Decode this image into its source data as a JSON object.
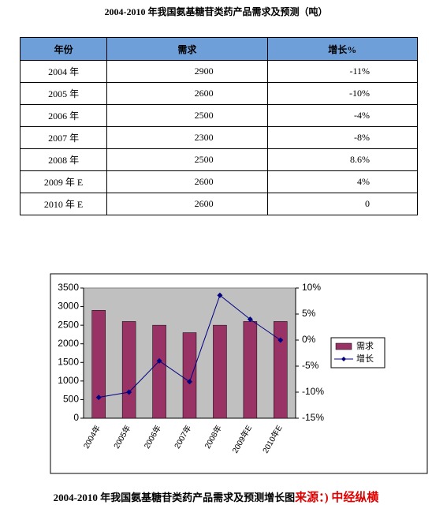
{
  "title": "2004-2010 年我国氨基糖苷类药产品需求及预测（吨）",
  "table": {
    "header": [
      "年份",
      "需求",
      "增长%"
    ],
    "rows": [
      [
        "2004 年",
        "2900",
        "-11%"
      ],
      [
        "2005 年",
        "2600",
        "-10%"
      ],
      [
        "2006 年",
        "2500",
        "-4%"
      ],
      [
        "2007 年",
        "2300",
        "-8%"
      ],
      [
        "2008 年",
        "2500",
        "8.6%"
      ],
      [
        "2009 年 E",
        "2600",
        "4%"
      ],
      [
        "2010 年 E",
        "2600",
        "0"
      ]
    ]
  },
  "chart_data": {
    "type": "bar",
    "categories": [
      "2004年",
      "2005年",
      "2006年",
      "2007年",
      "2008年",
      "2009年E",
      "2010年E"
    ],
    "series": [
      {
        "name": "需求",
        "color": "#993366",
        "type": "bar",
        "values": [
          2900,
          2600,
          2500,
          2300,
          2500,
          2600,
          2600
        ]
      },
      {
        "name": "增长",
        "color": "#000080",
        "type": "line",
        "axis": "y2",
        "values": [
          -11,
          -10,
          -4,
          -8,
          8.6,
          4,
          0
        ]
      }
    ],
    "ylim": [
      0,
      3500
    ],
    "yticks": [
      0,
      500,
      1000,
      1500,
      2000,
      2500,
      3000,
      3500
    ],
    "y2lim": [
      -15,
      10
    ],
    "y2ticks": [
      {
        "value": -15,
        "label": "-15%"
      },
      {
        "value": -10,
        "label": "-10%"
      },
      {
        "value": -5,
        "label": "-5%"
      },
      {
        "value": 0,
        "label": "0%"
      },
      {
        "value": 5,
        "label": "5%"
      },
      {
        "value": 10,
        "label": "10%"
      }
    ],
    "legend": "right",
    "plot_background": "#c0c0c0"
  },
  "caption": "2004-2010 年我国氨基糖苷类药产品需求及预测增长图",
  "source": "来源：) 中经纵横"
}
